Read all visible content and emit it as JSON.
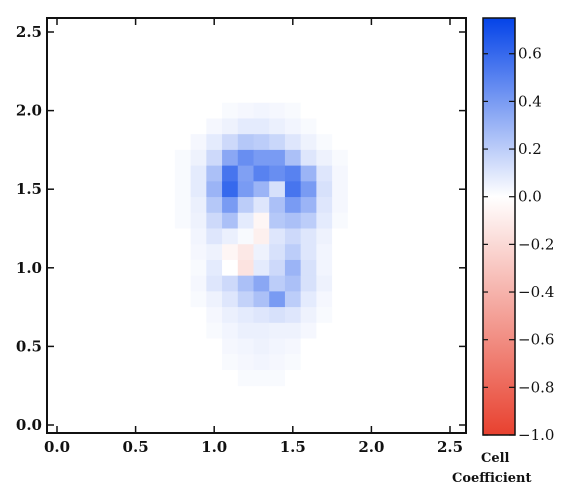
{
  "chart_data": {
    "type": "heatmap",
    "title": "",
    "xlabel": "",
    "ylabel": "",
    "xlim": [
      -0.1,
      2.6
    ],
    "ylim": [
      -0.05,
      2.6
    ],
    "x_ticks": [
      0.0,
      0.5,
      1.0,
      1.5,
      2.0,
      2.5
    ],
    "y_ticks": [
      0.0,
      0.5,
      1.0,
      1.5,
      2.0,
      2.5
    ],
    "x_tick_labels": [
      "0.0",
      "0.5",
      "1.0",
      "1.5",
      "2.0",
      "2.5"
    ],
    "y_tick_labels": [
      "0.0",
      "0.5",
      "1.0",
      "1.5",
      "2.0",
      "2.5"
    ],
    "grid": false,
    "cell_size": 0.1,
    "x_start": 0.65,
    "y_start": 0.25,
    "cols": 13,
    "rows": 18,
    "values": [
      [
        0.0,
        0.0,
        0.0,
        0.0,
        0.02,
        0.03,
        0.04,
        0.03,
        0.02,
        0.0,
        0.0,
        0.0,
        0.0
      ],
      [
        0.0,
        0.0,
        0.0,
        0.03,
        0.05,
        0.08,
        0.08,
        0.06,
        0.04,
        0.02,
        0.0,
        0.0,
        0.0
      ],
      [
        0.0,
        0.0,
        0.03,
        0.08,
        0.15,
        0.22,
        0.2,
        0.16,
        0.1,
        0.05,
        0.02,
        0.0,
        0.0
      ],
      [
        0.0,
        0.02,
        0.05,
        0.15,
        0.35,
        0.45,
        0.4,
        0.4,
        0.25,
        0.1,
        0.05,
        0.02,
        0.0
      ],
      [
        0.0,
        0.02,
        0.08,
        0.25,
        0.55,
        0.38,
        0.5,
        0.45,
        0.5,
        0.3,
        0.1,
        0.03,
        0.0
      ],
      [
        0.0,
        0.02,
        0.08,
        0.3,
        0.6,
        0.4,
        0.3,
        0.12,
        0.55,
        0.4,
        0.12,
        0.03,
        0.0
      ],
      [
        0.0,
        0.02,
        0.06,
        0.22,
        0.4,
        0.2,
        0.1,
        0.25,
        0.4,
        0.3,
        0.1,
        0.03,
        0.0
      ],
      [
        0.0,
        0.02,
        0.05,
        0.15,
        0.25,
        0.08,
        -0.05,
        0.22,
        0.25,
        0.2,
        0.08,
        0.02,
        0.0
      ],
      [
        0.0,
        0.0,
        0.04,
        0.1,
        0.06,
        0.02,
        -0.08,
        0.1,
        0.15,
        0.1,
        0.05,
        0.0,
        0.0
      ],
      [
        0.0,
        0.0,
        0.03,
        0.05,
        -0.05,
        -0.12,
        0.05,
        0.12,
        0.2,
        0.1,
        0.04,
        0.0,
        0.0
      ],
      [
        0.0,
        0.0,
        0.02,
        0.08,
        0.0,
        -0.15,
        0.08,
        0.15,
        0.3,
        0.12,
        0.04,
        0.0,
        0.0
      ],
      [
        0.0,
        0.0,
        0.03,
        0.1,
        0.15,
        0.25,
        0.35,
        0.2,
        0.25,
        0.12,
        0.05,
        0.0,
        0.0
      ],
      [
        0.0,
        0.0,
        0.02,
        0.05,
        0.1,
        0.18,
        0.25,
        0.4,
        0.2,
        0.08,
        0.03,
        0.0,
        0.0
      ],
      [
        0.0,
        0.0,
        0.0,
        0.03,
        0.06,
        0.08,
        0.1,
        0.12,
        0.1,
        0.05,
        0.02,
        0.0,
        0.0
      ],
      [
        0.0,
        0.0,
        0.0,
        0.02,
        0.04,
        0.06,
        0.06,
        0.05,
        0.05,
        0.03,
        0.0,
        0.0,
        0.0
      ],
      [
        0.0,
        0.0,
        0.0,
        0.0,
        0.03,
        0.04,
        0.05,
        0.04,
        0.03,
        0.0,
        0.0,
        0.0,
        0.0
      ],
      [
        0.0,
        0.0,
        0.0,
        0.0,
        0.02,
        0.03,
        0.04,
        0.03,
        0.02,
        0.0,
        0.0,
        0.0,
        0.0
      ],
      [
        0.0,
        0.0,
        0.0,
        0.0,
        0.0,
        0.02,
        0.02,
        0.02,
        0.0,
        0.0,
        0.0,
        0.0,
        0.0
      ]
    ],
    "colorbar": {
      "label_line1": "Cell",
      "label_line2": "Coefficient",
      "vmin": -1.0,
      "vmax": 0.75,
      "ticks": [
        0.6,
        0.4,
        0.2,
        0.0,
        -0.2,
        -0.4,
        -0.6,
        -0.8,
        -1.0
      ],
      "tick_labels": [
        "0.6",
        "0.4",
        "0.2",
        "0.0",
        "−0.2",
        "−0.4",
        "−0.6",
        "−0.8",
        "−1.0"
      ],
      "color_min": "#e8412f",
      "color_zero": "#ffffff",
      "color_max": "#0443e8"
    }
  }
}
